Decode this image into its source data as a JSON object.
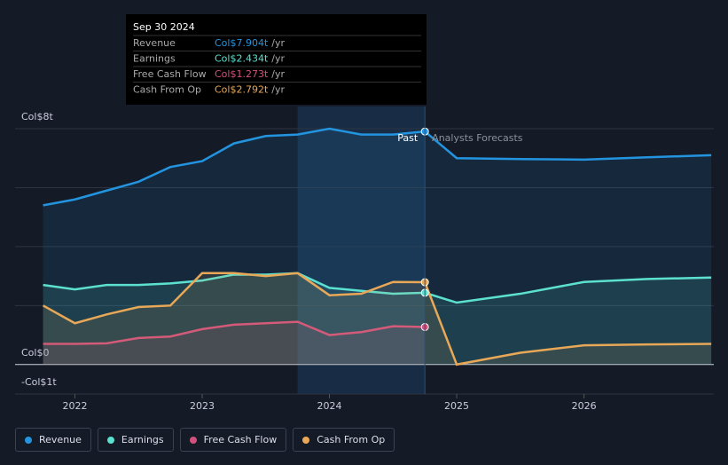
{
  "chart_data": {
    "type": "line",
    "x": [
      2021.75,
      2022,
      2022.25,
      2022.5,
      2022.75,
      2023,
      2023.25,
      2023.5,
      2023.75,
      2024,
      2024.25,
      2024.5,
      2024.75,
      2025,
      2025.5,
      2026,
      2026.5,
      2027
    ],
    "series": [
      {
        "name": "Revenue",
        "color": "#2394df",
        "values": [
          5.4,
          5.6,
          5.9,
          6.2,
          6.7,
          6.9,
          7.5,
          7.75,
          7.8,
          8.0,
          7.8,
          7.8,
          7.904,
          7.0,
          6.97,
          6.95,
          7.03,
          7.1
        ]
      },
      {
        "name": "Earnings",
        "color": "#5ce1d0",
        "values": [
          2.7,
          2.55,
          2.7,
          2.7,
          2.75,
          2.85,
          3.05,
          3.05,
          3.1,
          2.6,
          2.5,
          2.4,
          2.434,
          2.1,
          2.4,
          2.8,
          2.9,
          2.95
        ]
      },
      {
        "name": "Free Cash Flow",
        "color": "#d1517e",
        "values": [
          0.7,
          0.7,
          0.72,
          0.9,
          0.95,
          1.2,
          1.35,
          1.4,
          1.45,
          1.0,
          1.1,
          1.3,
          1.273,
          null,
          null,
          null,
          null,
          null
        ]
      },
      {
        "name": "Cash From Op",
        "color": "#e8a857",
        "values": [
          2.0,
          1.4,
          1.7,
          1.95,
          2.0,
          3.1,
          3.1,
          3.0,
          3.1,
          2.35,
          2.4,
          2.8,
          2.792,
          0.0,
          0.4,
          0.65,
          0.68,
          0.7
        ]
      }
    ],
    "xlim": [
      2021.53,
      2027.02
    ],
    "xticks": [
      2022,
      2023,
      2024,
      2025,
      2026
    ],
    "ylim": [
      -1,
      8
    ],
    "yticks": [
      {
        "value": 8,
        "label": "Col$8t"
      },
      {
        "value": 6,
        "label": null
      },
      {
        "value": 4,
        "label": null
      },
      {
        "value": 2,
        "label": null
      },
      {
        "value": 0,
        "label": "Col$0"
      },
      {
        "value": -1,
        "label": "-Col$1t"
      }
    ],
    "grid": true,
    "highlight_range": [
      2023.75,
      2024.75
    ],
    "past_label": "Past",
    "forecast_label": "Analysts Forecasts",
    "tooltip": {
      "date": "Sep 30 2024",
      "values": [
        "Col$7.904t",
        "Col$2.434t",
        "Col$1.273t",
        "Col$2.792t"
      ],
      "unit": "/yr"
    }
  }
}
